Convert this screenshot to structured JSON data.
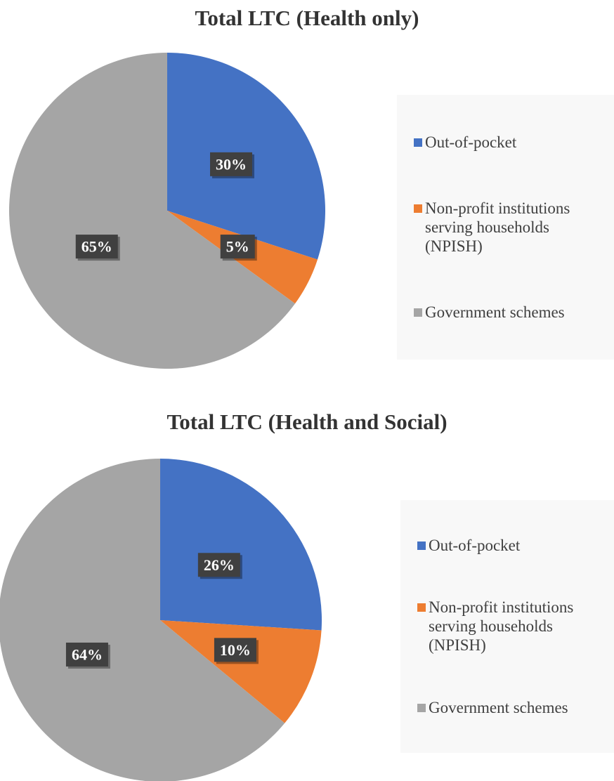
{
  "chart_data": [
    {
      "type": "pie",
      "title": "Total LTC (Health only)",
      "categories": [
        "Out-of-pocket",
        "Non-profit institutions serving households (NPISH)",
        "Government schemes"
      ],
      "values": [
        30,
        5,
        65
      ],
      "value_labels": [
        "30%",
        "5%",
        "65%"
      ],
      "colors": [
        "#4472c4",
        "#ed7d31",
        "#a5a5a5"
      ],
      "legend": "right"
    },
    {
      "type": "pie",
      "title": "Total LTC (Health and Social)",
      "categories": [
        "Out-of-pocket",
        "Non-profit institutions serving households (NPISH)",
        "Government schemes"
      ],
      "values": [
        26,
        10,
        64
      ],
      "value_labels": [
        "26%",
        "10%",
        "64%"
      ],
      "colors": [
        "#4472c4",
        "#ed7d31",
        "#a5a5a5"
      ],
      "legend": "right"
    }
  ]
}
